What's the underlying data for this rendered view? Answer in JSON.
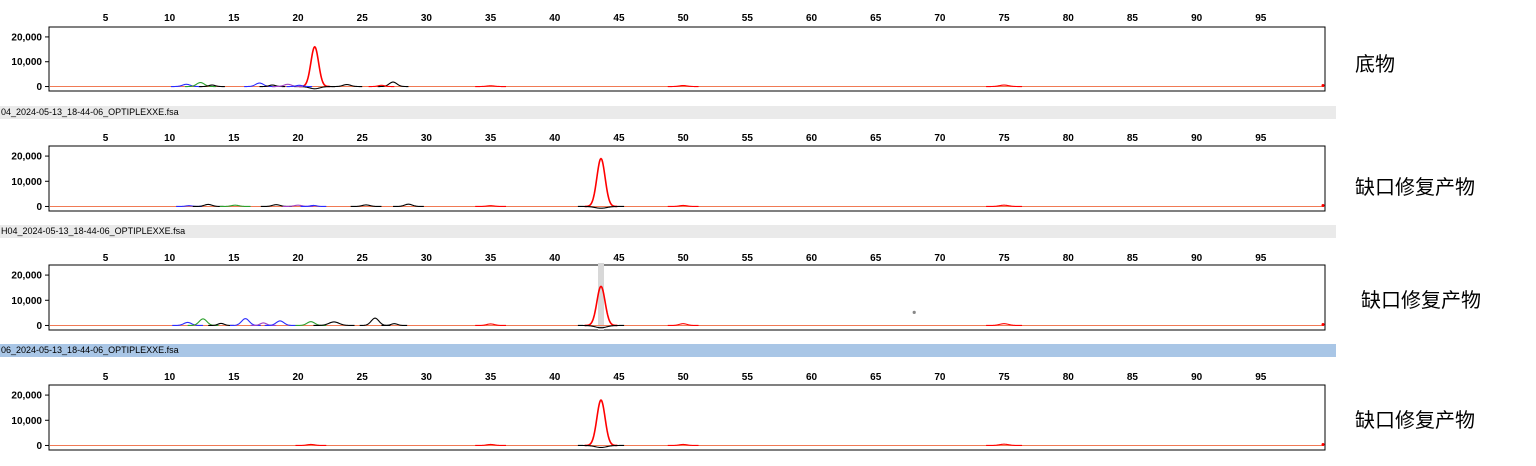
{
  "x_ticks": [
    5,
    10,
    15,
    20,
    25,
    30,
    35,
    40,
    45,
    50,
    55,
    60,
    65,
    70,
    75,
    80,
    85,
    90,
    95
  ],
  "colors": {
    "red": "#ff0000",
    "baseline": "#f07a55",
    "black": "#000000",
    "green": "#2ca02c",
    "blue": "#2b2bff",
    "purple": "#a040c0",
    "file_bar_gray": "#eaeaea",
    "file_bar_blue": "#a9c6e6",
    "highlight_band": "#d8d8d8"
  },
  "chart_data": [
    {
      "type": "line",
      "x_range": [
        0.6,
        100
      ],
      "ylim": [
        -1800,
        24000
      ],
      "ytick_labels": [
        "20,000",
        "10,000",
        "0"
      ],
      "ytick_values": [
        20000,
        10000,
        0
      ],
      "side_label": "底物",
      "file_label": "",
      "peaks": [
        {
          "x": 21.3,
          "y": 16000,
          "w": 0.3,
          "color": "red"
        },
        {
          "x": 21.3,
          "y": -900,
          "w": 0.4,
          "color": "black"
        },
        {
          "x": 11.3,
          "y": 900,
          "w": 0.3,
          "color": "blue"
        },
        {
          "x": 12.4,
          "y": 1600,
          "w": 0.3,
          "color": "green"
        },
        {
          "x": 13.3,
          "y": 600,
          "w": 0.25,
          "color": "black"
        },
        {
          "x": 17.0,
          "y": 1400,
          "w": 0.3,
          "color": "blue"
        },
        {
          "x": 18.0,
          "y": 600,
          "w": 0.25,
          "color": "black"
        },
        {
          "x": 19.2,
          "y": 900,
          "w": 0.3,
          "color": "purple"
        },
        {
          "x": 20.1,
          "y": 500,
          "w": 0.25,
          "color": "blue"
        },
        {
          "x": 23.8,
          "y": 800,
          "w": 0.3,
          "color": "black"
        },
        {
          "x": 27.4,
          "y": 1800,
          "w": 0.3,
          "color": "black"
        },
        {
          "x": 26.5,
          "y": 500,
          "w": 0.25,
          "color": "red"
        },
        {
          "x": 35.0,
          "y": 300,
          "w": 0.3,
          "color": "red"
        },
        {
          "x": 50.0,
          "y": 400,
          "w": 0.3,
          "color": "red"
        },
        {
          "x": 75.0,
          "y": 600,
          "w": 0.35,
          "color": "red"
        }
      ]
    },
    {
      "type": "line",
      "x_range": [
        0.6,
        100
      ],
      "ylim": [
        -1800,
        24000
      ],
      "ytick_labels": [
        "20,000",
        "10,000",
        "0"
      ],
      "ytick_values": [
        20000,
        10000,
        0
      ],
      "side_label": "缺口修复产物",
      "file_label": "04_2024-05-13_18-44-06_OPTIPLEXXE.fsa",
      "peaks": [
        {
          "x": 43.6,
          "y": 19000,
          "w": 0.32,
          "color": "red"
        },
        {
          "x": 43.6,
          "y": -700,
          "w": 0.45,
          "color": "black"
        },
        {
          "x": 11.5,
          "y": 300,
          "w": 0.25,
          "color": "blue"
        },
        {
          "x": 13.0,
          "y": 800,
          "w": 0.3,
          "color": "black"
        },
        {
          "x": 15.1,
          "y": 500,
          "w": 0.3,
          "color": "green"
        },
        {
          "x": 18.3,
          "y": 700,
          "w": 0.3,
          "color": "black"
        },
        {
          "x": 20.0,
          "y": 500,
          "w": 0.3,
          "color": "purple"
        },
        {
          "x": 21.2,
          "y": 400,
          "w": 0.25,
          "color": "blue"
        },
        {
          "x": 25.3,
          "y": 600,
          "w": 0.3,
          "color": "black"
        },
        {
          "x": 28.6,
          "y": 900,
          "w": 0.3,
          "color": "black"
        },
        {
          "x": 35.0,
          "y": 300,
          "w": 0.3,
          "color": "red"
        },
        {
          "x": 50.0,
          "y": 400,
          "w": 0.3,
          "color": "red"
        },
        {
          "x": 75.0,
          "y": 500,
          "w": 0.35,
          "color": "red"
        }
      ]
    },
    {
      "type": "line",
      "x_range": [
        0.6,
        100
      ],
      "ylim": [
        -1800,
        24000
      ],
      "ytick_labels": [
        "20,000",
        "10,000",
        "0"
      ],
      "ytick_values": [
        20000,
        10000,
        0
      ],
      "side_label": "缺口修复产物",
      "file_label": "H04_2024-05-13_18-44-06_OPTIPLEXXE.fsa",
      "highlight_x": 43.6,
      "peaks": [
        {
          "x": 43.6,
          "y": 15500,
          "w": 0.32,
          "color": "red"
        },
        {
          "x": 43.6,
          "y": -900,
          "w": 0.45,
          "color": "black"
        },
        {
          "x": 11.4,
          "y": 1200,
          "w": 0.3,
          "color": "blue"
        },
        {
          "x": 12.6,
          "y": 2600,
          "w": 0.3,
          "color": "green"
        },
        {
          "x": 14.0,
          "y": 800,
          "w": 0.25,
          "color": "black"
        },
        {
          "x": 15.9,
          "y": 2700,
          "w": 0.3,
          "color": "blue"
        },
        {
          "x": 17.3,
          "y": 1000,
          "w": 0.25,
          "color": "purple"
        },
        {
          "x": 18.6,
          "y": 1800,
          "w": 0.3,
          "color": "blue"
        },
        {
          "x": 21.0,
          "y": 1500,
          "w": 0.3,
          "color": "green"
        },
        {
          "x": 22.8,
          "y": 1400,
          "w": 0.4,
          "color": "black"
        },
        {
          "x": 26.0,
          "y": 2900,
          "w": 0.3,
          "color": "black"
        },
        {
          "x": 27.5,
          "y": 700,
          "w": 0.25,
          "color": "black"
        },
        {
          "x": 35.0,
          "y": 600,
          "w": 0.3,
          "color": "red"
        },
        {
          "x": 50.0,
          "y": 700,
          "w": 0.3,
          "color": "red"
        },
        {
          "x": 75.0,
          "y": 700,
          "w": 0.35,
          "color": "red"
        }
      ]
    },
    {
      "type": "line",
      "x_range": [
        0.6,
        100
      ],
      "ylim": [
        -1800,
        24000
      ],
      "ytick_labels": [
        "20,000",
        "10,000",
        "0"
      ],
      "ytick_values": [
        20000,
        10000,
        0
      ],
      "side_label": "缺口修复产物",
      "file_label": "06_2024-05-13_18-44-06_OPTIPLEXXE.fsa",
      "peaks": [
        {
          "x": 43.6,
          "y": 18000,
          "w": 0.32,
          "color": "red"
        },
        {
          "x": 43.6,
          "y": -800,
          "w": 0.45,
          "color": "black"
        },
        {
          "x": 21.0,
          "y": 400,
          "w": 0.3,
          "color": "red"
        },
        {
          "x": 35.0,
          "y": 400,
          "w": 0.3,
          "color": "red"
        },
        {
          "x": 50.0,
          "y": 400,
          "w": 0.3,
          "color": "red"
        },
        {
          "x": 75.0,
          "y": 500,
          "w": 0.35,
          "color": "red"
        }
      ]
    }
  ]
}
